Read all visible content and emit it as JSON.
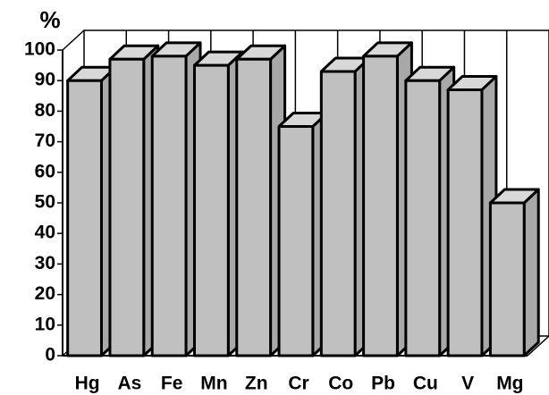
{
  "chart_data": {
    "type": "bar3d",
    "title": "%",
    "categories": [
      "Hg",
      "As",
      "Fe",
      "Mn",
      "Zn",
      "Cr",
      "Co",
      "Pb",
      "Cu",
      "V",
      "Mg"
    ],
    "values": [
      90,
      97,
      98,
      95,
      97,
      75,
      93,
      98,
      90,
      87,
      50
    ],
    "color": "#c0c0c0",
    "ylim": [
      0,
      100
    ],
    "yticks": [
      0,
      10,
      20,
      30,
      40,
      50,
      60,
      70,
      80,
      90,
      100
    ]
  }
}
